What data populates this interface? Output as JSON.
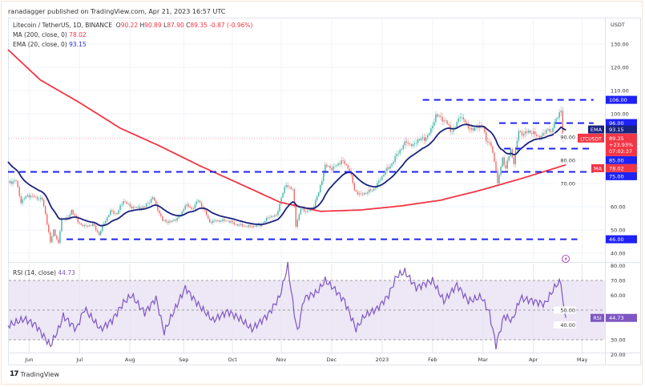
{
  "header": {
    "published": "ranadagger published on TradingView.com, Apr 21, 2023 16:57 UTC"
  },
  "legend": {
    "symbol": "Litecoin / TetherUS, 1D, BINANCE",
    "o_label": "O",
    "o": "90.22",
    "h_label": "H",
    "h": "90.89",
    "l_label": "L",
    "l": "87.90",
    "c_label": "C",
    "c": "89.35",
    "change": "-0.87 (-0.96%)",
    "ma_label": "MA (200, close, 0)",
    "ma_value": "78.02",
    "ema_label": "EMA (20, close, 0)",
    "ema_value": "93.15",
    "rsi_label": "RSI (14, close)",
    "rsi_value": "44.73"
  },
  "price_axis": {
    "currency": "USDT",
    "ticks": [
      "130.00",
      "120.00",
      "110.00",
      "100.00",
      "90.00",
      "80.00",
      "70.00",
      "60.00",
      "50.00",
      "40.00"
    ],
    "tick_values": [
      130,
      120,
      110,
      100,
      90,
      80,
      70,
      60,
      50,
      40
    ]
  },
  "rsi_axis": {
    "ticks": [
      "80.00",
      "70.00",
      "60.00",
      "50.00",
      "40.00",
      "30.00",
      "20.00"
    ],
    "tick_values": [
      80,
      70,
      60,
      50,
      40,
      30,
      20
    ]
  },
  "time_axis": {
    "labels": [
      "Jun",
      "Jul",
      "Aug",
      "Sep",
      "Oct",
      "Nov",
      "Dec",
      "2023",
      "Feb",
      "Mar",
      "Apr",
      "May"
    ],
    "label_days": [
      13,
      44,
      75,
      108,
      138,
      168,
      199,
      230,
      261,
      292,
      323,
      353
    ]
  },
  "levels": [
    {
      "label": "106.00",
      "value": 106,
      "from_day": 255,
      "to_day": 360
    },
    {
      "label": "96.00",
      "value": 96,
      "from_day": 302,
      "to_day": 360
    },
    {
      "label": "85.00",
      "value": 85,
      "from_day": 305,
      "to_day": 360
    },
    {
      "label": "75.00",
      "value": 75,
      "from_day": 0,
      "to_day": 360
    },
    {
      "label": "46.00",
      "value": 46,
      "from_day": 36,
      "to_day": 350
    }
  ],
  "tags": {
    "ema": {
      "name": "EMA",
      "value": "93.15"
    },
    "ma": {
      "name": "MA",
      "value": "78.02"
    },
    "last": {
      "name": "LTCUSDT",
      "value": "89.35",
      "change": "+23.93%",
      "countdown": "07:02:37"
    },
    "rsi": {
      "name": "RSI",
      "value": "44.73"
    }
  },
  "colors": {
    "level": "#1e22f5",
    "ma": "#f23645",
    "ema": "#1a237e",
    "up": "#26a69a",
    "down": "#ef5350",
    "rsi": "#7e57c2",
    "rsi_band": "#ede7f6"
  },
  "footer": {
    "brand": "TradingView"
  },
  "chart_data": {
    "type": "candlestick",
    "title": "Litecoin / TetherUS, 1D, BINANCE",
    "x_unit": "days since 2022-05-19",
    "ylim": [
      38,
      137
    ],
    "close_points": [
      [
        0,
        70
      ],
      [
        1,
        70.7
      ],
      [
        5,
        71
      ],
      [
        8,
        62
      ],
      [
        12,
        65
      ],
      [
        17,
        64
      ],
      [
        21,
        63
      ],
      [
        23,
        57
      ],
      [
        26,
        44.5
      ],
      [
        28,
        50
      ],
      [
        31,
        44
      ],
      [
        33,
        55
      ],
      [
        37,
        55
      ],
      [
        39,
        58.6
      ],
      [
        43,
        53.4
      ],
      [
        47,
        51.4
      ],
      [
        52,
        52.4
      ],
      [
        56,
        48
      ],
      [
        59,
        53
      ],
      [
        63,
        58
      ],
      [
        67,
        57
      ],
      [
        71,
        62.8
      ],
      [
        75,
        60
      ],
      [
        80,
        59.5
      ],
      [
        84,
        60
      ],
      [
        89,
        64
      ],
      [
        92,
        59
      ],
      [
        95,
        54
      ],
      [
        100,
        53.4
      ],
      [
        106,
        56
      ],
      [
        109,
        61
      ],
      [
        113,
        59
      ],
      [
        117,
        62.7
      ],
      [
        120,
        59.3
      ],
      [
        124,
        53.4
      ],
      [
        129,
        54
      ],
      [
        135,
        54
      ],
      [
        140,
        52.4
      ],
      [
        148,
        51.4
      ],
      [
        155,
        52
      ],
      [
        161,
        55.9
      ],
      [
        165,
        56
      ],
      [
        168,
        64
      ],
      [
        171,
        69.6
      ],
      [
        175,
        67
      ],
      [
        176,
        60
      ],
      [
        177,
        52
      ],
      [
        180,
        59
      ],
      [
        184,
        58
      ],
      [
        187,
        59
      ],
      [
        191,
        66
      ],
      [
        195,
        77.6
      ],
      [
        199,
        76.5
      ],
      [
        202,
        77.6
      ],
      [
        205,
        80
      ],
      [
        210,
        76
      ],
      [
        213,
        67
      ],
      [
        217,
        65
      ],
      [
        221,
        66.5
      ],
      [
        224,
        67
      ],
      [
        228,
        70.7
      ],
      [
        232,
        75.5
      ],
      [
        234,
        76.5
      ],
      [
        238,
        81
      ],
      [
        241,
        84.5
      ],
      [
        245,
        88
      ],
      [
        249,
        86
      ],
      [
        252,
        89
      ],
      [
        256,
        89
      ],
      [
        260,
        92.7
      ],
      [
        263,
        99.6
      ],
      [
        266,
        98
      ],
      [
        269,
        97
      ],
      [
        272,
        92.7
      ],
      [
        275,
        94
      ],
      [
        278,
        99.6
      ],
      [
        282,
        95
      ],
      [
        286,
        92.7
      ],
      [
        289,
        95
      ],
      [
        292,
        94
      ],
      [
        294,
        89
      ],
      [
        297,
        86
      ],
      [
        300,
        76.5
      ],
      [
        301,
        69.6
      ],
      [
        304,
        81
      ],
      [
        306,
        76.5
      ],
      [
        309,
        84.5
      ],
      [
        311,
        79
      ],
      [
        314,
        92.7
      ],
      [
        317,
        91
      ],
      [
        320,
        92.7
      ],
      [
        324,
        91
      ],
      [
        328,
        90
      ],
      [
        332,
        94
      ],
      [
        334,
        91
      ],
      [
        336,
        97
      ],
      [
        340,
        100.7
      ],
      [
        341,
        89.8
      ],
      [
        343,
        89.35
      ]
    ],
    "ma200_points": [
      [
        0,
        127.6
      ],
      [
        20,
        114.5
      ],
      [
        44,
        104.8
      ],
      [
        69,
        93.8
      ],
      [
        94,
        85.9
      ],
      [
        118,
        77.6
      ],
      [
        143,
        69.7
      ],
      [
        167,
        62
      ],
      [
        192,
        58
      ],
      [
        217,
        58.6
      ],
      [
        241,
        60.3
      ],
      [
        266,
        62.8
      ],
      [
        291,
        67.2
      ],
      [
        315,
        72
      ],
      [
        343,
        78.02
      ]
    ],
    "ema20_start": 79.3,
    "rsi_points": [
      [
        1,
        40
      ],
      [
        10,
        44
      ],
      [
        17,
        40
      ],
      [
        26,
        26
      ],
      [
        31,
        37
      ],
      [
        34,
        46
      ],
      [
        42,
        37
      ],
      [
        47,
        51
      ],
      [
        57,
        37
      ],
      [
        64,
        43
      ],
      [
        71,
        55
      ],
      [
        76,
        60
      ],
      [
        84,
        48
      ],
      [
        91,
        58
      ],
      [
        96,
        35
      ],
      [
        101,
        47
      ],
      [
        109,
        65
      ],
      [
        116,
        55
      ],
      [
        126,
        43
      ],
      [
        135,
        49
      ],
      [
        143,
        44
      ],
      [
        150,
        37
      ],
      [
        160,
        47
      ],
      [
        167,
        59
      ],
      [
        172,
        80
      ],
      [
        176,
        48
      ],
      [
        178,
        35
      ],
      [
        182,
        58
      ],
      [
        190,
        62
      ],
      [
        195,
        70
      ],
      [
        200,
        65
      ],
      [
        207,
        56
      ],
      [
        214,
        37
      ],
      [
        219,
        46
      ],
      [
        227,
        51
      ],
      [
        234,
        60
      ],
      [
        239,
        73
      ],
      [
        244,
        76
      ],
      [
        251,
        65
      ],
      [
        261,
        70
      ],
      [
        268,
        56
      ],
      [
        276,
        67
      ],
      [
        283,
        56
      ],
      [
        291,
        59
      ],
      [
        296,
        48
      ],
      [
        300,
        26
      ],
      [
        305,
        46
      ],
      [
        310,
        43
      ],
      [
        315,
        58
      ],
      [
        323,
        56
      ],
      [
        330,
        54
      ],
      [
        337,
        67
      ],
      [
        340,
        69
      ],
      [
        342,
        47
      ],
      [
        343,
        44.73
      ]
    ]
  }
}
